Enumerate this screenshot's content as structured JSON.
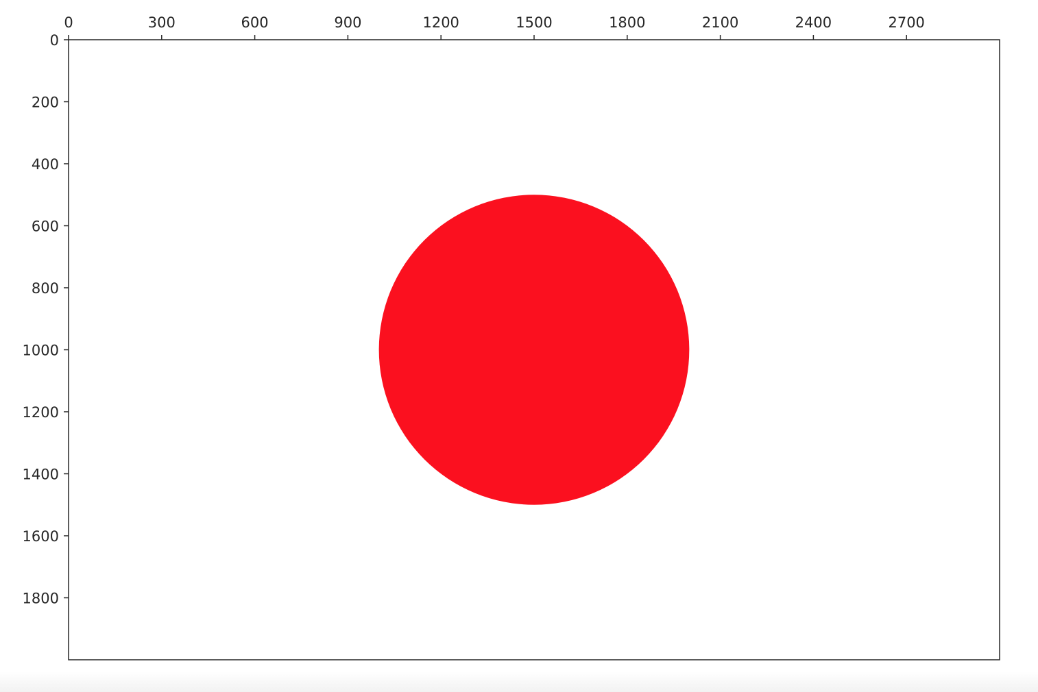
{
  "chart_data": {
    "type": "image",
    "title": "",
    "xlabel": "",
    "ylabel": "",
    "x_ticks": [
      0,
      300,
      600,
      900,
      1200,
      1500,
      1800,
      2100,
      2400,
      2700
    ],
    "y_ticks": [
      0,
      200,
      400,
      600,
      800,
      1000,
      1200,
      1400,
      1600,
      1800
    ],
    "xlim": [
      0,
      3000
    ],
    "ylim": [
      2000,
      0
    ],
    "x_axis_position": "top",
    "y_axis_inverted": true,
    "grid": false,
    "background_color": "#ffffff",
    "shapes": [
      {
        "kind": "circle",
        "center": [
          1500,
          1000
        ],
        "radius": 500,
        "color": "#fb101f"
      }
    ]
  }
}
